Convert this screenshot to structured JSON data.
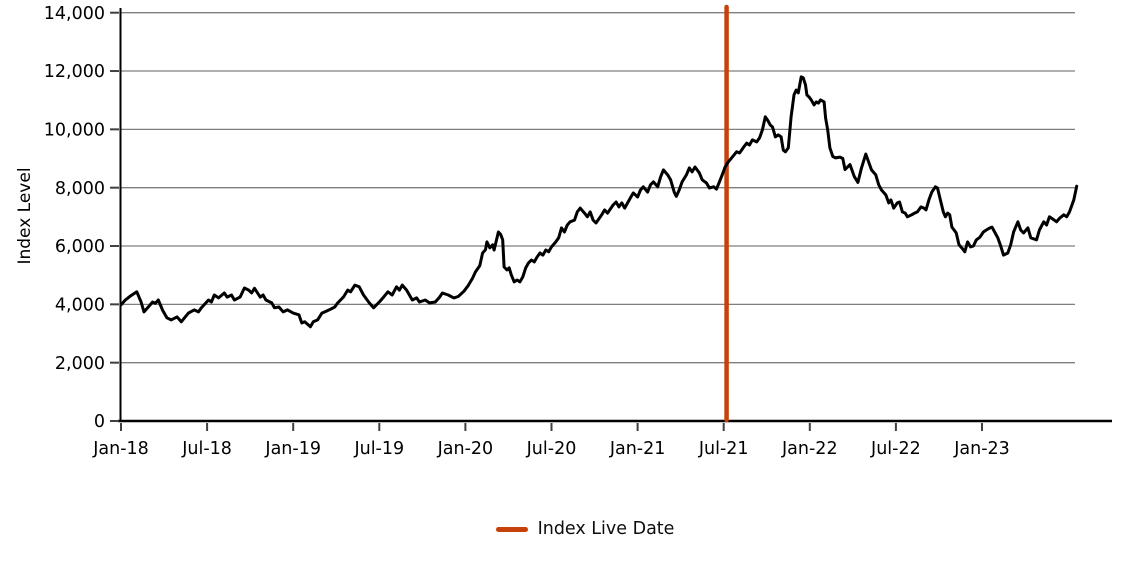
{
  "chart_data": {
    "type": "line",
    "title": "",
    "xlabel": "",
    "ylabel": "Index Level",
    "ylim": [
      0,
      14000
    ],
    "grid": "horizontal-gray",
    "y_ticks": [
      0,
      2000,
      4000,
      6000,
      8000,
      10000,
      12000,
      14000
    ],
    "y_tick_labels": [
      "0",
      "2,000",
      "4,000",
      "6,000",
      "8,000",
      "10,000",
      "12,000",
      "14,000"
    ],
    "x_tick_months": [
      0,
      6,
      12,
      18,
      24,
      30,
      36,
      42,
      48,
      54,
      60
    ],
    "x_tick_labels": [
      "Jan-18",
      "Jul-18",
      "Jan-19",
      "Jul-19",
      "Jan-20",
      "Jul-20",
      "Jan-21",
      "Jul-21",
      "Jan-22",
      "Jul-22",
      "Jan-23"
    ],
    "x_range_months": [
      0,
      66.6
    ],
    "series": [
      {
        "name": "Index Level",
        "color": "#000000",
        "line_width": 3,
        "points": [
          [
            0,
            3980
          ],
          [
            0.3,
            4150
          ],
          [
            0.7,
            4300
          ],
          [
            1.1,
            4430
          ],
          [
            1.4,
            4080
          ],
          [
            1.6,
            3740
          ],
          [
            1.9,
            3910
          ],
          [
            2.2,
            4080
          ],
          [
            2.4,
            4040
          ],
          [
            2.6,
            4150
          ],
          [
            2.9,
            3800
          ],
          [
            3.2,
            3540
          ],
          [
            3.5,
            3465
          ],
          [
            3.9,
            3570
          ],
          [
            4.2,
            3400
          ],
          [
            4.7,
            3700
          ],
          [
            5.1,
            3810
          ],
          [
            5.4,
            3740
          ],
          [
            5.6,
            3880
          ],
          [
            6.1,
            4150
          ],
          [
            6.3,
            4080
          ],
          [
            6.5,
            4320
          ],
          [
            6.8,
            4220
          ],
          [
            7.2,
            4390
          ],
          [
            7.4,
            4250
          ],
          [
            7.7,
            4320
          ],
          [
            7.9,
            4150
          ],
          [
            8.3,
            4250
          ],
          [
            8.6,
            4560
          ],
          [
            8.9,
            4490
          ],
          [
            9.1,
            4390
          ],
          [
            9.3,
            4550
          ],
          [
            9.7,
            4250
          ],
          [
            9.9,
            4320
          ],
          [
            10.1,
            4150
          ],
          [
            10.5,
            4050
          ],
          [
            10.7,
            3880
          ],
          [
            11,
            3910
          ],
          [
            11.3,
            3740
          ],
          [
            11.6,
            3810
          ],
          [
            12,
            3700
          ],
          [
            12.4,
            3640
          ],
          [
            12.6,
            3360
          ],
          [
            12.8,
            3400
          ],
          [
            13.2,
            3230
          ],
          [
            13.4,
            3400
          ],
          [
            13.7,
            3465
          ],
          [
            14,
            3700
          ],
          [
            14.2,
            3740
          ],
          [
            14.5,
            3810
          ],
          [
            14.9,
            3910
          ],
          [
            15.1,
            4050
          ],
          [
            15.5,
            4250
          ],
          [
            15.8,
            4490
          ],
          [
            16,
            4430
          ],
          [
            16.3,
            4660
          ],
          [
            16.6,
            4600
          ],
          [
            16.9,
            4320
          ],
          [
            17.3,
            4050
          ],
          [
            17.6,
            3880
          ],
          [
            18,
            4080
          ],
          [
            18.3,
            4250
          ],
          [
            18.6,
            4430
          ],
          [
            18.9,
            4320
          ],
          [
            19.2,
            4600
          ],
          [
            19.4,
            4490
          ],
          [
            19.6,
            4660
          ],
          [
            19.9,
            4490
          ],
          [
            20.3,
            4150
          ],
          [
            20.6,
            4220
          ],
          [
            20.8,
            4080
          ],
          [
            21.2,
            4150
          ],
          [
            21.5,
            4050
          ],
          [
            21.9,
            4080
          ],
          [
            22.2,
            4250
          ],
          [
            22.4,
            4390
          ],
          [
            22.8,
            4320
          ],
          [
            23.2,
            4220
          ],
          [
            23.5,
            4270
          ],
          [
            23.9,
            4450
          ],
          [
            24.2,
            4650
          ],
          [
            24.5,
            4900
          ],
          [
            24.7,
            5110
          ],
          [
            25,
            5330
          ],
          [
            25.2,
            5760
          ],
          [
            25.4,
            5870
          ],
          [
            25.5,
            6140
          ],
          [
            25.7,
            5935
          ],
          [
            25.9,
            6040
          ],
          [
            26,
            5865
          ],
          [
            26.3,
            6480
          ],
          [
            26.45,
            6400
          ],
          [
            26.6,
            6210
          ],
          [
            26.7,
            5280
          ],
          [
            26.9,
            5180
          ],
          [
            27.05,
            5250
          ],
          [
            27.2,
            5010
          ],
          [
            27.4,
            4770
          ],
          [
            27.6,
            4835
          ],
          [
            27.8,
            4770
          ],
          [
            28,
            4940
          ],
          [
            28.2,
            5250
          ],
          [
            28.4,
            5420
          ],
          [
            28.6,
            5520
          ],
          [
            28.8,
            5455
          ],
          [
            29,
            5625
          ],
          [
            29.2,
            5760
          ],
          [
            29.4,
            5690
          ],
          [
            29.6,
            5865
          ],
          [
            29.8,
            5800
          ],
          [
            30,
            5970
          ],
          [
            30.3,
            6140
          ],
          [
            30.5,
            6280
          ],
          [
            30.7,
            6620
          ],
          [
            30.9,
            6480
          ],
          [
            31.1,
            6720
          ],
          [
            31.3,
            6830
          ],
          [
            31.6,
            6890
          ],
          [
            31.8,
            7170
          ],
          [
            32,
            7300
          ],
          [
            32.3,
            7130
          ],
          [
            32.5,
            7000
          ],
          [
            32.7,
            7170
          ],
          [
            32.9,
            6890
          ],
          [
            33.1,
            6790
          ],
          [
            33.5,
            7070
          ],
          [
            33.7,
            7240
          ],
          [
            33.9,
            7130
          ],
          [
            34.3,
            7410
          ],
          [
            34.5,
            7510
          ],
          [
            34.7,
            7340
          ],
          [
            34.9,
            7480
          ],
          [
            35.1,
            7300
          ],
          [
            35.5,
            7650
          ],
          [
            35.7,
            7820
          ],
          [
            36,
            7680
          ],
          [
            36.2,
            7920
          ],
          [
            36.4,
            8030
          ],
          [
            36.7,
            7850
          ],
          [
            36.9,
            8100
          ],
          [
            37.1,
            8200
          ],
          [
            37.4,
            8030
          ],
          [
            37.6,
            8370
          ],
          [
            37.8,
            8610
          ],
          [
            38.1,
            8440
          ],
          [
            38.3,
            8270
          ],
          [
            38.55,
            7850
          ],
          [
            38.7,
            7700
          ],
          [
            38.9,
            7920
          ],
          [
            39.1,
            8200
          ],
          [
            39.4,
            8440
          ],
          [
            39.6,
            8680
          ],
          [
            39.8,
            8540
          ],
          [
            40,
            8710
          ],
          [
            40.3,
            8510
          ],
          [
            40.5,
            8270
          ],
          [
            40.8,
            8160
          ],
          [
            41,
            7990
          ],
          [
            41.3,
            8030
          ],
          [
            41.5,
            7950
          ],
          [
            41.7,
            8200
          ],
          [
            41.9,
            8450
          ],
          [
            42.1,
            8710
          ],
          [
            42.3,
            8870
          ],
          [
            42.6,
            9050
          ],
          [
            42.9,
            9230
          ],
          [
            43.1,
            9190
          ],
          [
            43.25,
            9290
          ],
          [
            43.4,
            9400
          ],
          [
            43.6,
            9530
          ],
          [
            43.8,
            9465
          ],
          [
            44,
            9640
          ],
          [
            44.3,
            9570
          ],
          [
            44.5,
            9710
          ],
          [
            44.7,
            9980
          ],
          [
            44.9,
            10430
          ],
          [
            45.05,
            10320
          ],
          [
            45.25,
            10150
          ],
          [
            45.4,
            10080
          ],
          [
            45.6,
            9740
          ],
          [
            45.8,
            9810
          ],
          [
            46,
            9740
          ],
          [
            46.15,
            9290
          ],
          [
            46.3,
            9230
          ],
          [
            46.5,
            9365
          ],
          [
            46.7,
            10430
          ],
          [
            46.9,
            11180
          ],
          [
            47.05,
            11350
          ],
          [
            47.2,
            11250
          ],
          [
            47.4,
            11800
          ],
          [
            47.55,
            11765
          ],
          [
            47.7,
            11525
          ],
          [
            47.8,
            11180
          ],
          [
            47.95,
            11110
          ],
          [
            48.1,
            11010
          ],
          [
            48.3,
            10840
          ],
          [
            48.45,
            10940
          ],
          [
            48.6,
            10900
          ],
          [
            48.75,
            11010
          ],
          [
            49,
            10940
          ],
          [
            49.1,
            10390
          ],
          [
            49.25,
            9980
          ],
          [
            49.4,
            9365
          ],
          [
            49.6,
            9070
          ],
          [
            49.8,
            9020
          ],
          [
            50.1,
            9050
          ],
          [
            50.3,
            9000
          ],
          [
            50.45,
            8620
          ],
          [
            50.8,
            8790
          ],
          [
            51.1,
            8380
          ],
          [
            51.35,
            8180
          ],
          [
            51.6,
            8680
          ],
          [
            51.9,
            9150
          ],
          [
            52.3,
            8610
          ],
          [
            52.6,
            8440
          ],
          [
            52.8,
            8100
          ],
          [
            53,
            7920
          ],
          [
            53.3,
            7750
          ],
          [
            53.5,
            7480
          ],
          [
            53.65,
            7580
          ],
          [
            53.85,
            7300
          ],
          [
            54.1,
            7480
          ],
          [
            54.25,
            7510
          ],
          [
            54.45,
            7170
          ],
          [
            54.65,
            7130
          ],
          [
            54.8,
            7000
          ],
          [
            55.1,
            7070
          ],
          [
            55.3,
            7130
          ],
          [
            55.5,
            7170
          ],
          [
            55.75,
            7340
          ],
          [
            55.95,
            7300
          ],
          [
            56.1,
            7240
          ],
          [
            56.3,
            7580
          ],
          [
            56.5,
            7850
          ],
          [
            56.75,
            8030
          ],
          [
            56.9,
            7990
          ],
          [
            57.15,
            7480
          ],
          [
            57.3,
            7170
          ],
          [
            57.45,
            7000
          ],
          [
            57.6,
            7130
          ],
          [
            57.75,
            7070
          ],
          [
            57.9,
            6650
          ],
          [
            58.2,
            6450
          ],
          [
            58.4,
            6040
          ],
          [
            58.65,
            5900
          ],
          [
            58.8,
            5800
          ],
          [
            59,
            6140
          ],
          [
            59.2,
            5970
          ],
          [
            59.4,
            6000
          ],
          [
            59.6,
            6210
          ],
          [
            59.85,
            6300
          ],
          [
            60.1,
            6480
          ],
          [
            60.3,
            6550
          ],
          [
            60.55,
            6620
          ],
          [
            60.7,
            6650
          ],
          [
            61.1,
            6280
          ],
          [
            61.3,
            6000
          ],
          [
            61.5,
            5690
          ],
          [
            61.8,
            5760
          ],
          [
            62,
            6040
          ],
          [
            62.2,
            6480
          ],
          [
            62.5,
            6830
          ],
          [
            62.7,
            6550
          ],
          [
            62.9,
            6450
          ],
          [
            63.2,
            6620
          ],
          [
            63.4,
            6280
          ],
          [
            63.8,
            6210
          ],
          [
            64,
            6550
          ],
          [
            64.3,
            6830
          ],
          [
            64.5,
            6720
          ],
          [
            64.7,
            7000
          ],
          [
            65,
            6900
          ],
          [
            65.2,
            6830
          ],
          [
            65.4,
            6950
          ],
          [
            65.7,
            7070
          ],
          [
            65.9,
            7000
          ],
          [
            66.1,
            7170
          ],
          [
            66.4,
            7580
          ],
          [
            66.6,
            8050
          ]
        ]
      }
    ],
    "annotations": [
      {
        "type": "vline",
        "label": "Index Live Date",
        "month": 42.2,
        "x_tick_ref": "Jul-21",
        "color": "#C7420B",
        "line_width": 4.5
      }
    ],
    "legend": {
      "position": "bottom-center",
      "entries": [
        {
          "label": "Index Live Date",
          "color": "#C7420B"
        }
      ]
    },
    "colors": {
      "series_line": "#000000",
      "live_date_line": "#C7420B",
      "gridline": "#7f7f7f",
      "axis": "#000000",
      "tick": "#404040",
      "background": "#ffffff"
    }
  }
}
